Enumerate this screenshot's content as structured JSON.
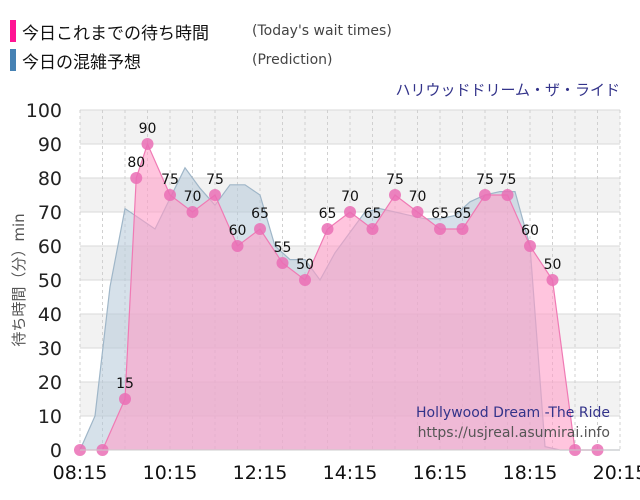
{
  "legend": {
    "today": {
      "label_jp": "今日これまでの待ち時間",
      "label_en": "(Today's wait times)",
      "color": "#ff1493"
    },
    "prediction": {
      "label_jp": "今日の混雑予想",
      "label_en": "(Prediction)",
      "color": "#4682b4"
    }
  },
  "chart_data": {
    "type": "area",
    "title": "ハリウッドドリーム・ザ・ライド",
    "ylabel": "待ち時間（分）min",
    "ylim": [
      0,
      100
    ],
    "xlim": [
      "08:15",
      "20:15"
    ],
    "yticks": [
      0,
      10,
      20,
      30,
      40,
      50,
      60,
      70,
      80,
      90,
      100
    ],
    "xticks": [
      "08:15",
      "10:15",
      "12:15",
      "14:15",
      "16:15",
      "18:15",
      "20:15"
    ],
    "grid": true,
    "watermark": [
      "Hollywood Dream -The Ride",
      "https://usjreal.asumirai.info"
    ],
    "series": [
      {
        "name": "今日これまでの待ち時間",
        "color": "#ff69b4",
        "labeled": true,
        "x": [
          "08:15",
          "08:45",
          "09:15",
          "09:30",
          "09:45",
          "10:15",
          "10:45",
          "11:15",
          "11:45",
          "12:15",
          "12:45",
          "13:15",
          "13:45",
          "14:15",
          "14:45",
          "15:15",
          "15:45",
          "16:15",
          "16:45",
          "17:15",
          "17:45",
          "18:15",
          "18:45",
          "19:15",
          "19:45"
        ],
        "y": [
          0,
          0,
          15,
          80,
          90,
          75,
          70,
          75,
          60,
          65,
          55,
          50,
          65,
          70,
          65,
          75,
          70,
          65,
          65,
          75,
          75,
          60,
          50,
          0,
          0
        ]
      },
      {
        "name": "今日の混雑予想",
        "color": "#4682b4",
        "labeled": false,
        "x": [
          "08:15",
          "08:35",
          "08:55",
          "09:15",
          "09:35",
          "09:55",
          "10:15",
          "10:35",
          "10:55",
          "11:15",
          "11:35",
          "11:55",
          "12:15",
          "12:35",
          "12:55",
          "13:15",
          "13:35",
          "13:55",
          "14:15",
          "14:35",
          "14:55",
          "15:15",
          "15:35",
          "15:55",
          "16:15",
          "16:35",
          "16:55",
          "17:15",
          "17:35",
          "17:55",
          "18:15",
          "18:35",
          "18:55",
          "19:15",
          "19:35",
          "19:55",
          "20:15"
        ],
        "y": [
          0,
          10,
          48,
          71,
          68,
          65,
          74,
          83,
          77,
          72,
          78,
          78,
          75,
          60,
          56,
          56,
          50,
          58,
          64,
          70,
          71,
          70,
          69,
          68,
          68,
          69,
          73,
          75,
          76,
          76,
          60,
          1,
          0,
          0,
          0,
          0,
          0
        ]
      }
    ]
  }
}
